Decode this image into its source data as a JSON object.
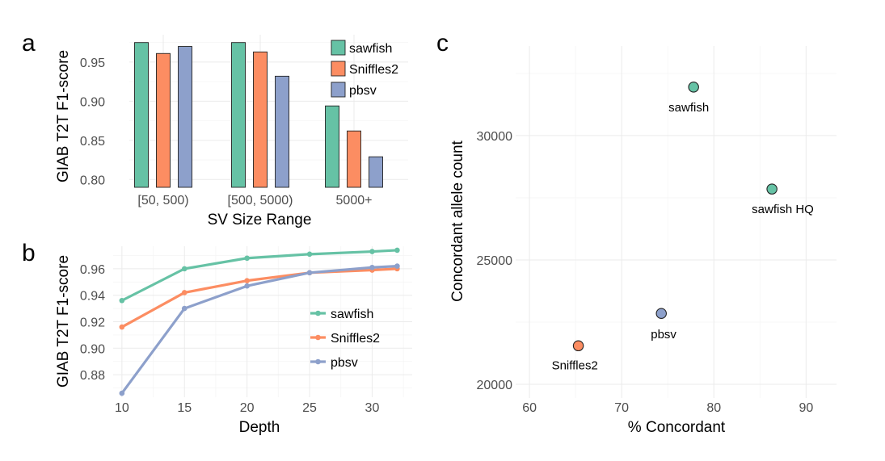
{
  "panels": [
    "a",
    "b",
    "c"
  ],
  "colors": {
    "sawfish": "#66c2a5",
    "Sniffles2": "#fc8d62",
    "pbsv": "#8da0cb"
  },
  "chart_data": [
    {
      "id": "a",
      "type": "bar",
      "xlabel": "SV Size Range",
      "ylabel": "GIAB T2T F1-score",
      "categories": [
        "[50, 500)",
        "[500, 5000)",
        "5000+"
      ],
      "series": [
        {
          "name": "sawfish",
          "values": [
            0.975,
            0.975,
            0.894
          ]
        },
        {
          "name": "Sniffles2",
          "values": [
            0.961,
            0.963,
            0.862
          ]
        },
        {
          "name": "pbsv",
          "values": [
            0.97,
            0.932,
            0.829
          ]
        }
      ],
      "ylim": [
        0.79,
        0.985
      ],
      "yticks": [
        0.8,
        0.85,
        0.9,
        0.95
      ],
      "ytick_labels": [
        "0.80",
        "0.85",
        "0.90",
        "0.95"
      ],
      "legend": "top-right",
      "grid": true
    },
    {
      "id": "b",
      "type": "line",
      "xlabel": "Depth",
      "ylabel": "GIAB T2T F1-score",
      "x": [
        10,
        15,
        20,
        25,
        30,
        32
      ],
      "series": [
        {
          "name": "sawfish",
          "values": [
            0.936,
            0.96,
            0.968,
            0.971,
            0.973,
            0.974
          ]
        },
        {
          "name": "Sniffles2",
          "values": [
            0.916,
            0.942,
            0.951,
            0.957,
            0.959,
            0.96
          ]
        },
        {
          "name": "pbsv",
          "values": [
            0.866,
            0.93,
            0.947,
            0.957,
            0.961,
            0.962
          ]
        }
      ],
      "xlim": [
        9.3,
        33.2
      ],
      "ylim": [
        0.863,
        0.977
      ],
      "xticks": [
        10,
        15,
        20,
        25,
        30
      ],
      "xtick_labels": [
        "10",
        "15",
        "20",
        "25",
        "30"
      ],
      "yticks": [
        0.88,
        0.9,
        0.92,
        0.94,
        0.96
      ],
      "ytick_labels": [
        "0.88",
        "0.90",
        "0.92",
        "0.94",
        "0.96"
      ],
      "legend": "right",
      "grid": true
    },
    {
      "id": "c",
      "type": "scatter",
      "xlabel": "% Concordant",
      "ylabel": "Concordant allele count",
      "points": [
        {
          "label": "sawfish",
          "series": "sawfish",
          "x": 77.8,
          "y": 31950
        },
        {
          "label": "sawfish HQ",
          "series": "sawfish",
          "x": 86.3,
          "y": 27850
        },
        {
          "label": "pbsv",
          "series": "pbsv",
          "x": 74.3,
          "y": 22850
        },
        {
          "label": "Sniffles2",
          "series": "Sniffles2",
          "x": 65.3,
          "y": 21550
        }
      ],
      "xlim": [
        58.5,
        93.3
      ],
      "ylim": [
        19450,
        33600
      ],
      "xticks": [
        60,
        70,
        80,
        90
      ],
      "xtick_labels": [
        "60",
        "70",
        "80",
        "90"
      ],
      "yticks": [
        20000,
        25000,
        30000
      ],
      "ytick_labels": [
        "20000",
        "25000",
        "30000"
      ],
      "grid": true
    }
  ]
}
